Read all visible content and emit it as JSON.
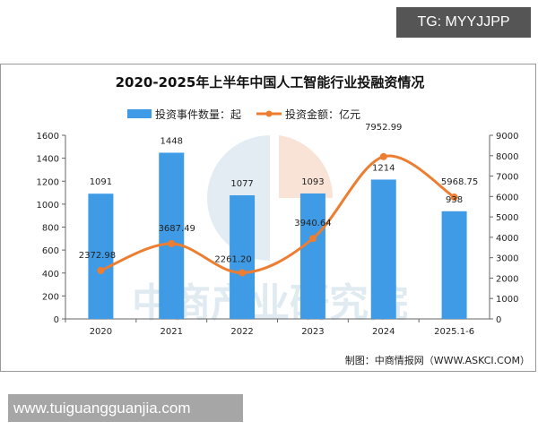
{
  "overlay": {
    "tg_label": "TG: MYYJJPP",
    "site_label": "www.tuiguangguanjia.com"
  },
  "watermark": "中商产业研究院",
  "source": "制图：中商情报网（WWW.ASKCI.COM）",
  "colors": {
    "bar": "#3f9be6",
    "line": "#ed7d31"
  },
  "chart_data": {
    "type": "bar+line",
    "title": "2020-2025年上半年中国人工智能行业投融资情况",
    "categories": [
      "2020",
      "2021",
      "2022",
      "2023",
      "2024",
      "2025.1-6"
    ],
    "series": [
      {
        "name": "投资事件数量：起",
        "type": "bar",
        "axis": "left",
        "values": [
          1091,
          1448,
          1077,
          1093,
          1214,
          938
        ],
        "labels": [
          "1091",
          "1448",
          "1077",
          "1093",
          "1214",
          "938"
        ]
      },
      {
        "name": "投资金额：亿元",
        "type": "line",
        "axis": "right",
        "values": [
          2372.98,
          3687.49,
          2261.2,
          3940.64,
          7952.99,
          5968.75
        ],
        "labels": [
          "2372.98",
          "3687.49",
          "2261.20",
          "3940.64",
          "7952.99",
          "5968.75"
        ]
      }
    ],
    "y_left": {
      "range": [
        0,
        1600
      ],
      "ticks": [
        "0",
        "200",
        "400",
        "600",
        "800",
        "1000",
        "1200",
        "1400",
        "1600"
      ]
    },
    "y_right": {
      "range": [
        0,
        9000
      ],
      "ticks": [
        "0",
        "1000",
        "2000",
        "3000",
        "4000",
        "5000",
        "6000",
        "7000",
        "8000",
        "9000"
      ]
    },
    "grid": false,
    "legend": "top"
  }
}
